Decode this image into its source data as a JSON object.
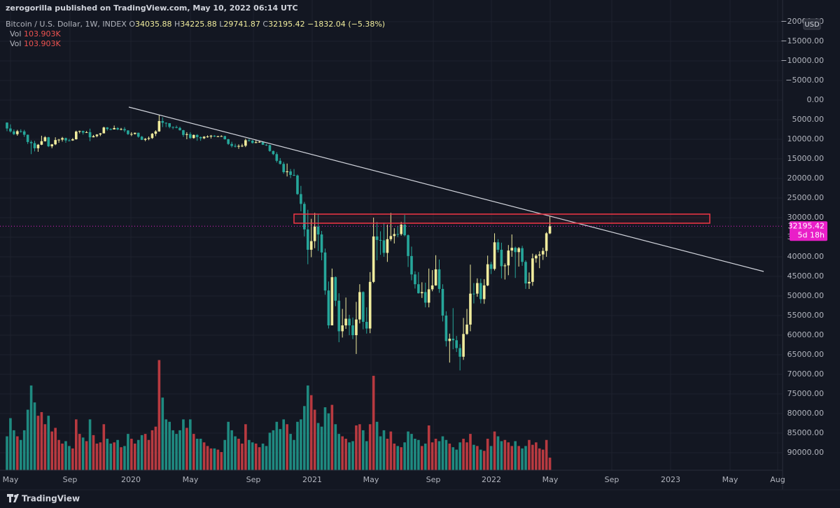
{
  "header": {
    "publisher": "zerogorilla published on TradingView.com, May 10, 2022 06:14 UTC"
  },
  "footer": {
    "brand": "TradingView"
  },
  "chart_data": {
    "type": "candlestick",
    "title": "Bitcoin / U.S. Dollar, 1W, INDEX",
    "ohlc_labels": [
      "O",
      "H",
      "L",
      "C"
    ],
    "change": {
      "value": -1832.04,
      "label": "−1832.04"
    },
    "change_pct": {
      "value": -5.38,
      "label": "(−5.38%)"
    },
    "currency": "USD",
    "countdown": "5d 18h",
    "inverted": true,
    "grid": true,
    "up_color": "#26a69a",
    "down_color": "#f0ec9d",
    "volume_up_color": "#1f8a80",
    "volume_down_color": "#b83a40",
    "x_labels": [
      "May",
      "Sep",
      "2020",
      "May",
      "Sep",
      "2021",
      "May",
      "Sep",
      "2022",
      "May",
      "Sep",
      "2023",
      "May",
      "Aug"
    ],
    "ylim": [
      -20000,
      90000
    ],
    "yticks": [
      {
        "value": -20000,
        "label": "−20000.00"
      },
      {
        "value": -15000,
        "label": "−15000.00"
      },
      {
        "value": -10000,
        "label": "−10000.00"
      },
      {
        "value": -5000,
        "label": "−5000.00"
      },
      {
        "value": 0,
        "label": "0.00"
      },
      {
        "value": 5000,
        "label": "5000.00"
      },
      {
        "value": 10000,
        "label": "10000.00"
      },
      {
        "value": 15000,
        "label": "15000.00"
      },
      {
        "value": 20000,
        "label": "20000.00"
      },
      {
        "value": 25000,
        "label": "25000.00"
      },
      {
        "value": 30000,
        "label": "30000.00"
      },
      {
        "value": 35000,
        "label": "35000.00"
      },
      {
        "value": 40000,
        "label": "40000.00"
      },
      {
        "value": 45000,
        "label": "45000.00"
      },
      {
        "value": 50000,
        "label": "50000.00"
      },
      {
        "value": 55000,
        "label": "55000.00"
      },
      {
        "value": 60000,
        "label": "60000.00"
      },
      {
        "value": 65000,
        "label": "65000.00"
      },
      {
        "value": 70000,
        "label": "70000.00"
      },
      {
        "value": 75000,
        "label": "75000.00"
      },
      {
        "value": 80000,
        "label": "80000.00"
      },
      {
        "value": 85000,
        "label": "85000.00"
      },
      {
        "value": 90000,
        "label": "90000.00"
      }
    ],
    "ohlc": [
      [
        5750,
        7950,
        5700,
        7250
      ],
      [
        7250,
        8300,
        6200,
        8000
      ],
      [
        8000,
        8950,
        7500,
        8700
      ],
      [
        8700,
        9100,
        7600,
        7950
      ],
      [
        7950,
        8300,
        7450,
        8000
      ],
      [
        8000,
        9400,
        7600,
        8850
      ],
      [
        8850,
        11200,
        8800,
        10700
      ],
      [
        10700,
        13800,
        10300,
        11000
      ],
      [
        11000,
        13100,
        10400,
        12300
      ],
      [
        12300,
        13200,
        11200,
        11400
      ],
      [
        11400,
        11500,
        9100,
        10500
      ],
      [
        10500,
        10600,
        9200,
        9500
      ],
      [
        9500,
        12000,
        9400,
        11800
      ],
      [
        11800,
        12300,
        11200,
        11300
      ],
      [
        11300,
        11500,
        9500,
        10200
      ],
      [
        10200,
        10900,
        9900,
        10100
      ],
      [
        10100,
        10600,
        9400,
        9700
      ],
      [
        9700,
        10900,
        9600,
        10300
      ],
      [
        10300,
        10500,
        9900,
        10300
      ],
      [
        10300,
        10400,
        9700,
        10000
      ],
      [
        10000,
        10100,
        7800,
        8050
      ],
      [
        8050,
        8500,
        7800,
        7900
      ],
      [
        7900,
        8800,
        7800,
        8300
      ],
      [
        8300,
        8400,
        7900,
        8200
      ],
      [
        8200,
        10500,
        7300,
        9500
      ],
      [
        9500,
        9500,
        8900,
        9200
      ],
      [
        9200,
        9500,
        8700,
        8800
      ],
      [
        8800,
        9200,
        8400,
        8500
      ],
      [
        8500,
        8500,
        6800,
        7000
      ],
      [
        7000,
        7800,
        6900,
        7400
      ],
      [
        7400,
        7700,
        7200,
        7500
      ],
      [
        7500,
        7500,
        6500,
        7150
      ],
      [
        7150,
        7700,
        6900,
        7500
      ],
      [
        7500,
        7700,
        7100,
        7400
      ],
      [
        7400,
        8200,
        6900,
        7750
      ],
      [
        7750,
        8900,
        7700,
        8700
      ],
      [
        8700,
        9200,
        8200,
        8650
      ],
      [
        8650,
        8800,
        8300,
        8350
      ],
      [
        8350,
        9600,
        8300,
        9350
      ],
      [
        9350,
        10200,
        9150,
        10150
      ],
      [
        10150,
        10500,
        9700,
        9900
      ],
      [
        9900,
        10250,
        9300,
        9700
      ],
      [
        9700,
        9900,
        8400,
        8600
      ],
      [
        8600,
        9200,
        7700,
        8000
      ],
      [
        8000,
        8100,
        3850,
        5350
      ],
      [
        5350,
        6900,
        4400,
        5800
      ],
      [
        5800,
        6900,
        5700,
        5900
      ],
      [
        5900,
        7200,
        5900,
        6850
      ],
      [
        6850,
        7450,
        6750,
        6900
      ],
      [
        6900,
        7200,
        6500,
        7100
      ],
      [
        7100,
        7800,
        6800,
        7700
      ],
      [
        7700,
        9400,
        7600,
        8900
      ],
      [
        8900,
        10000,
        8200,
        8700
      ],
      [
        8700,
        9900,
        8200,
        9700
      ],
      [
        9700,
        9850,
        8800,
        8900
      ],
      [
        8900,
        10400,
        8700,
        9450
      ],
      [
        9450,
        10400,
        9300,
        9750
      ],
      [
        9750,
        9950,
        9200,
        9350
      ],
      [
        9350,
        9600,
        9000,
        9300
      ],
      [
        9300,
        9800,
        8900,
        9100
      ],
      [
        9100,
        9450,
        8950,
        9300
      ],
      [
        9300,
        9450,
        9100,
        9250
      ],
      [
        9250,
        9300,
        9000,
        9200
      ],
      [
        9200,
        10100,
        9100,
        10000
      ],
      [
        10000,
        11450,
        9900,
        11200
      ],
      [
        11200,
        12100,
        10650,
        11700
      ],
      [
        11700,
        12100,
        11150,
        11900
      ],
      [
        11900,
        12450,
        11300,
        11700
      ],
      [
        11700,
        12000,
        11150,
        11650
      ],
      [
        11650,
        12000,
        9850,
        10250
      ],
      [
        10250,
        10600,
        9900,
        10350
      ],
      [
        10350,
        11100,
        10200,
        10950
      ],
      [
        10950,
        11000,
        10150,
        10750
      ],
      [
        10750,
        10900,
        10400,
        10650
      ],
      [
        10650,
        11450,
        10550,
        11400
      ],
      [
        11400,
        11700,
        11200,
        11500
      ],
      [
        11500,
        13200,
        11400,
        13000
      ],
      [
        13000,
        14050,
        12900,
        13800
      ],
      [
        13800,
        15950,
        13300,
        15500
      ],
      [
        15500,
        16450,
        14800,
        16300
      ],
      [
        16300,
        18800,
        15800,
        18400
      ],
      [
        18400,
        19500,
        16200,
        18200
      ],
      [
        18200,
        19900,
        17600,
        19100
      ],
      [
        19100,
        19400,
        17600,
        19250
      ],
      [
        19250,
        24200,
        19000,
        24000
      ],
      [
        24000,
        28400,
        21900,
        26500
      ],
      [
        26500,
        34800,
        26000,
        33000
      ],
      [
        33000,
        41900,
        28000,
        38200
      ],
      [
        38200,
        40100,
        30300,
        36000
      ],
      [
        36000,
        37800,
        28800,
        32300
      ],
      [
        32300,
        38500,
        29200,
        34300
      ],
      [
        34300,
        40900,
        33400,
        38900
      ],
      [
        38900,
        49700,
        37900,
        48600
      ],
      [
        48600,
        58300,
        46300,
        57500
      ],
      [
        57500,
        57500,
        43000,
        45200
      ],
      [
        45200,
        52600,
        45000,
        51200
      ],
      [
        51200,
        61800,
        49300,
        59000
      ],
      [
        59000,
        60600,
        53300,
        57500
      ],
      [
        57500,
        58400,
        50400,
        55800
      ],
      [
        55800,
        60000,
        54800,
        57500
      ],
      [
        57500,
        61000,
        55500,
        60000
      ],
      [
        60000,
        64800,
        51500,
        56000
      ],
      [
        56000,
        57000,
        47000,
        49000
      ],
      [
        49000,
        58500,
        48800,
        56600
      ],
      [
        56600,
        59600,
        52900,
        58300
      ],
      [
        58300,
        59500,
        43900,
        46400
      ],
      [
        46400,
        46700,
        30000,
        34800
      ],
      [
        34800,
        40900,
        31100,
        35700
      ],
      [
        35700,
        39500,
        33500,
        35800
      ],
      [
        35800,
        40000,
        31300,
        39000
      ],
      [
        39000,
        41300,
        31800,
        35500
      ],
      [
        35500,
        36000,
        28800,
        34700
      ],
      [
        34700,
        36600,
        32700,
        34200
      ],
      [
        34200,
        35000,
        32100,
        34200
      ],
      [
        34200,
        34600,
        31100,
        31800
      ],
      [
        31800,
        34800,
        29300,
        34500
      ],
      [
        34500,
        42600,
        34300,
        39800
      ],
      [
        39800,
        46000,
        37400,
        44500
      ],
      [
        44500,
        48100,
        43700,
        47000
      ],
      [
        47000,
        49400,
        43900,
        49300
      ],
      [
        49300,
        50500,
        46500,
        49000
      ],
      [
        49000,
        52900,
        46600,
        51700
      ],
      [
        51700,
        52900,
        43000,
        48300
      ],
      [
        48300,
        48800,
        43400,
        47300
      ],
      [
        47300,
        47400,
        39600,
        43200
      ],
      [
        43200,
        49200,
        40700,
        48200
      ],
      [
        48200,
        56500,
        47000,
        55000
      ],
      [
        55000,
        62900,
        53900,
        61500
      ],
      [
        61500,
        67000,
        59600,
        60900
      ],
      [
        60900,
        63600,
        53100,
        61300
      ],
      [
        61300,
        64300,
        60200,
        63300
      ],
      [
        63300,
        69000,
        62300,
        65500
      ],
      [
        65500,
        66300,
        55600,
        59700
      ],
      [
        59700,
        59900,
        53300,
        57300
      ],
      [
        57300,
        59000,
        42000,
        49400
      ],
      [
        49400,
        51900,
        46700,
        49400
      ],
      [
        49400,
        50200,
        45500,
        46700
      ],
      [
        46700,
        51900,
        45600,
        50800
      ],
      [
        50800,
        52000,
        45700,
        47300
      ],
      [
        47300,
        47500,
        39700,
        41900
      ],
      [
        41900,
        44400,
        41300,
        43100
      ],
      [
        43100,
        43500,
        34000,
        36300
      ],
      [
        36300,
        38900,
        35500,
        38200
      ],
      [
        38200,
        45500,
        36400,
        42400
      ],
      [
        42400,
        45800,
        41700,
        42200
      ],
      [
        42200,
        44700,
        37000,
        38400
      ],
      [
        38400,
        40000,
        34300,
        37700
      ],
      [
        37700,
        45400,
        37400,
        38800
      ],
      [
        38800,
        42500,
        37500,
        37800
      ],
      [
        37800,
        42300,
        37200,
        41300
      ],
      [
        41300,
        48200,
        40900,
        46800
      ],
      [
        46800,
        48200,
        44000,
        46400
      ],
      [
        46400,
        47400,
        39200,
        40400
      ],
      [
        40400,
        41500,
        39300,
        39700
      ],
      [
        39700,
        42900,
        38600,
        39400
      ],
      [
        39400,
        40800,
        37700,
        38500
      ],
      [
        38500,
        40000,
        33700,
        34000
      ],
      [
        34035.88,
        34225.88,
        29741.87,
        32195.42
      ]
    ],
    "volume": {
      "name": "Vol",
      "value_label": "103.903K",
      "values": [
        280,
        430,
        330,
        280,
        250,
        330,
        500,
        700,
        560,
        450,
        480,
        380,
        450,
        320,
        350,
        250,
        220,
        240,
        200,
        180,
        420,
        300,
        270,
        240,
        420,
        290,
        220,
        230,
        380,
        260,
        220,
        230,
        250,
        190,
        200,
        300,
        260,
        220,
        250,
        290,
        300,
        250,
        330,
        360,
        910,
        600,
        420,
        400,
        330,
        300,
        330,
        420,
        350,
        420,
        300,
        260,
        260,
        230,
        200,
        180,
        180,
        170,
        150,
        250,
        400,
        330,
        280,
        260,
        220,
        380,
        250,
        230,
        220,
        190,
        220,
        200,
        310,
        330,
        400,
        340,
        420,
        380,
        300,
        250,
        400,
        420,
        530,
        700,
        620,
        500,
        390,
        360,
        520,
        470,
        540,
        380,
        300,
        280,
        260,
        230,
        240,
        370,
        380,
        330,
        240,
        380,
        780,
        400,
        280,
        330,
        260,
        320,
        220,
        200,
        190,
        230,
        320,
        300,
        260,
        250,
        200,
        220,
        370,
        230,
        260,
        240,
        280,
        250,
        220,
        190,
        170,
        230,
        260,
        230,
        300,
        210,
        200,
        170,
        160,
        260,
        200,
        320,
        280,
        240,
        250,
        230,
        200,
        240,
        200,
        180,
        200,
        250,
        210,
        230,
        180,
        170,
        250,
        103.903
      ]
    }
  }
}
